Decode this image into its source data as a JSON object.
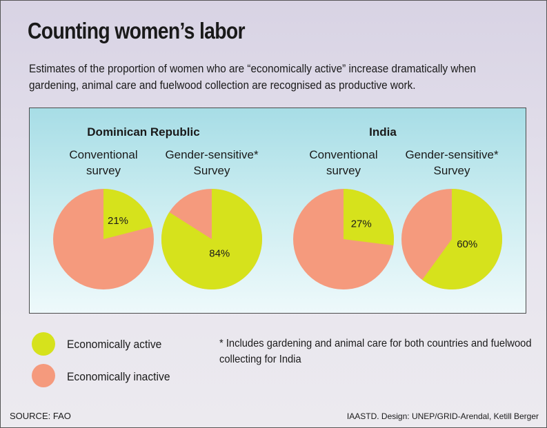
{
  "title": "Counting women’s labor",
  "subtitle": "Estimates of the proportion of women who are “economically  active” increase dramatically when gardening, animal care and fuelwood collection are recognised as productive work.",
  "colors": {
    "active": "#d6e21c",
    "inactive": "#f59a7d"
  },
  "chart_data": {
    "type": "pie",
    "groups": [
      {
        "country": "Dominican Republic",
        "charts": [
          {
            "label_line1": "Conventional",
            "label_line2": "survey",
            "active_pct": 21,
            "pct_label": "21%"
          },
          {
            "label_line1": "Gender-sensitive*",
            "label_line2": "Survey",
            "active_pct": 84,
            "pct_label": "84%"
          }
        ]
      },
      {
        "country": "India",
        "charts": [
          {
            "label_line1": "Conventional",
            "label_line2": "survey",
            "active_pct": 27,
            "pct_label": "27%"
          },
          {
            "label_line1": "Gender-sensitive*",
            "label_line2": "Survey",
            "active_pct": 60,
            "pct_label": "60%"
          }
        ]
      }
    ],
    "legend": [
      {
        "label": "Economically active",
        "color": "#d6e21c"
      },
      {
        "label": "Economically inactive",
        "color": "#f59a7d"
      }
    ]
  },
  "note": "* Includes gardening and animal care for both countries and fuelwood collecting for India",
  "source": "SOURCE: FAO",
  "credit": "IAASTD. Design: UNEP/GRID-Arendal, Ketill Berger"
}
